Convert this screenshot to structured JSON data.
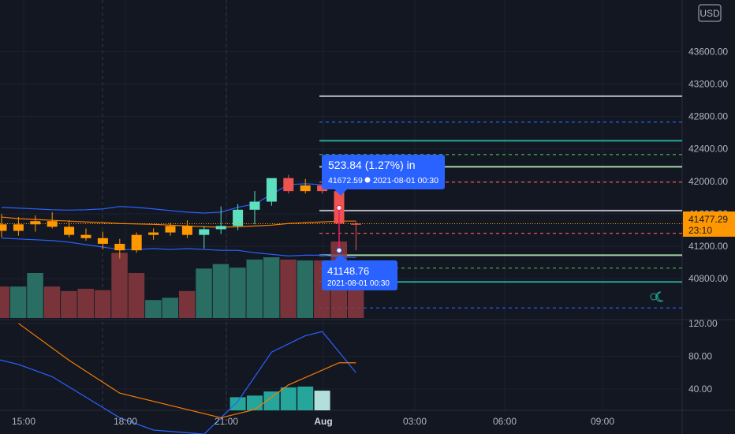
{
  "currency_button": "USD",
  "price_axis": {
    "labels": [
      "43600.00",
      "43200.00",
      "42800.00",
      "42400.00",
      "42000.00",
      "41600.00",
      "41200.00",
      "40800.00"
    ],
    "current_price": "41477.29",
    "countdown": "23:10"
  },
  "oscillator_axis": {
    "labels": [
      "120.00",
      "80.00",
      "40.00"
    ]
  },
  "time_axis": {
    "labels": [
      "15:00",
      "18:00",
      "21:00",
      "Aug",
      "03:00",
      "06:00",
      "09:00"
    ]
  },
  "measure": {
    "change_text": "523.84 (1.27%) in",
    "top_price": "41672.59",
    "top_time": "2021-08-01  00:30",
    "bottom_price": "41148.76",
    "bottom_time": "2021-08-01 00:30"
  },
  "colors": {
    "up": "#26a69a",
    "up_body": "#5ce0c0",
    "down": "#ef5350",
    "orange": "#ff9800",
    "band": "#2962ff",
    "ma": "#f57c00",
    "label_bg": "#2962ff"
  },
  "chart_data": [
    {
      "type": "candlestick",
      "symbol_currency": "USD",
      "x_unit": "time (30-minute bars, Jul 31 – Aug 1 2021)",
      "candles": [
        {
          "time": "14:30",
          "open": 41470,
          "high": 41600,
          "low": 41310,
          "close": 41390
        },
        {
          "time": "15:00",
          "open": 41390,
          "high": 41560,
          "low": 41330,
          "close": 41470
        },
        {
          "time": "15:30",
          "open": 41470,
          "high": 41580,
          "low": 41380,
          "close": 41510
        },
        {
          "time": "16:00",
          "open": 41510,
          "high": 41620,
          "low": 41420,
          "close": 41440
        },
        {
          "time": "16:30",
          "open": 41440,
          "high": 41520,
          "low": 41310,
          "close": 41340
        },
        {
          "time": "17:00",
          "open": 41340,
          "high": 41420,
          "low": 41270,
          "close": 41300
        },
        {
          "time": "17:30",
          "open": 41300,
          "high": 41380,
          "low": 41160,
          "close": 41230
        },
        {
          "time": "18:00",
          "open": 41230,
          "high": 41290,
          "low": 41050,
          "close": 41150
        },
        {
          "time": "18:30",
          "open": 41150,
          "high": 41370,
          "low": 41120,
          "close": 41340
        },
        {
          "time": "19:00",
          "open": 41340,
          "high": 41420,
          "low": 41280,
          "close": 41370
        },
        {
          "time": "19:30",
          "open": 41370,
          "high": 41490,
          "low": 41330,
          "close": 41450
        },
        {
          "time": "20:00",
          "open": 41450,
          "high": 41520,
          "low": 41300,
          "close": 41340
        },
        {
          "time": "20:30",
          "open": 41340,
          "high": 41450,
          "low": 41170,
          "close": 41410
        },
        {
          "time": "21:00",
          "open": 41410,
          "high": 41690,
          "low": 41350,
          "close": 41450
        },
        {
          "time": "21:30",
          "open": 41450,
          "high": 41720,
          "low": 41400,
          "close": 41650
        },
        {
          "time": "22:00",
          "open": 41650,
          "high": 41880,
          "low": 41470,
          "close": 41750
        },
        {
          "time": "22:30",
          "open": 41750,
          "high": 42030,
          "low": 41700,
          "close": 42040
        },
        {
          "time": "23:00",
          "open": 42040,
          "high": 42080,
          "low": 41850,
          "close": 41880
        },
        {
          "time": "23:30",
          "open": 41880,
          "high": 42030,
          "low": 41850,
          "close": 41950
        },
        {
          "time": "00:00",
          "open": 41950,
          "high": 42020,
          "low": 41850,
          "close": 41880
        },
        {
          "time": "00:30",
          "open": 41880,
          "high": 41950,
          "low": 41300,
          "close": 41480
        },
        {
          "time": "01:00",
          "open": 41480,
          "high": 41500,
          "low": 41150,
          "close": 41477.29
        }
      ],
      "volume": [
        {
          "time": "14:30",
          "value": 70,
          "dir": "down"
        },
        {
          "time": "15:00",
          "value": 70,
          "dir": "up"
        },
        {
          "time": "15:30",
          "value": 100,
          "dir": "up"
        },
        {
          "time": "16:00",
          "value": 70,
          "dir": "down"
        },
        {
          "time": "16:30",
          "value": 60,
          "dir": "down"
        },
        {
          "time": "17:00",
          "value": 65,
          "dir": "down"
        },
        {
          "time": "17:30",
          "value": 62,
          "dir": "down"
        },
        {
          "time": "18:00",
          "value": 145,
          "dir": "down"
        },
        {
          "time": "18:30",
          "value": 100,
          "dir": "down"
        },
        {
          "time": "19:00",
          "value": 40,
          "dir": "up"
        },
        {
          "time": "19:30",
          "value": 45,
          "dir": "up"
        },
        {
          "time": "20:00",
          "value": 60,
          "dir": "down"
        },
        {
          "time": "20:30",
          "value": 110,
          "dir": "up"
        },
        {
          "time": "21:00",
          "value": 120,
          "dir": "up"
        },
        {
          "time": "21:30",
          "value": 112,
          "dir": "up"
        },
        {
          "time": "22:00",
          "value": 130,
          "dir": "up"
        },
        {
          "time": "22:30",
          "value": 135,
          "dir": "up"
        },
        {
          "time": "23:00",
          "value": 130,
          "dir": "down"
        },
        {
          "time": "23:30",
          "value": 128,
          "dir": "up"
        },
        {
          "time": "00:00",
          "value": 128,
          "dir": "down"
        },
        {
          "time": "00:30",
          "value": 170,
          "dir": "down"
        },
        {
          "time": "01:00",
          "value": 110,
          "dir": "down"
        }
      ],
      "bollinger_upper": [
        41680,
        41670,
        41660,
        41650,
        41645,
        41650,
        41660,
        41690,
        41680,
        41660,
        41640,
        41620,
        41610,
        41620,
        41680,
        41720,
        41840,
        41960,
        41970,
        41960,
        41980,
        41980
      ],
      "bollinger_lower": [
        41300,
        41290,
        41280,
        41270,
        41250,
        41220,
        41190,
        41160,
        41160,
        41170,
        41160,
        41170,
        41160,
        41150,
        41150,
        41120,
        41100,
        41080,
        41090,
        41090,
        41070,
        41060
      ],
      "moving_average": [
        41560,
        41540,
        41530,
        41520,
        41510,
        41500,
        41490,
        41480,
        41475,
        41470,
        41460,
        41450,
        41440,
        41435,
        41440,
        41450,
        41460,
        41480,
        41490,
        41500,
        41510,
        41510
      ],
      "horizontal_levels": [
        {
          "price": 43050,
          "color": "#b2b5be",
          "style": "solid"
        },
        {
          "price": 42730,
          "color": "#2962ff",
          "style": "dashed"
        },
        {
          "price": 42500,
          "color": "#26a69a",
          "style": "solid"
        },
        {
          "price": 42330,
          "color": "#4caf50",
          "style": "dashed"
        },
        {
          "price": 42180,
          "color": "#a5d6a7",
          "style": "solid"
        },
        {
          "price": 41990,
          "color": "#ef5350",
          "style": "dashed"
        },
        {
          "price": 41640,
          "color": "#b2b5be",
          "style": "solid"
        },
        {
          "price": 41360,
          "color": "#ef5350",
          "style": "dashed"
        },
        {
          "price": 41090,
          "color": "#a5d6a7",
          "style": "solid"
        },
        {
          "price": 40930,
          "color": "#4caf50",
          "style": "dashed"
        },
        {
          "price": 40760,
          "color": "#26a69a",
          "style": "solid"
        },
        {
          "price": 40440,
          "color": "#2962ff",
          "style": "dashed"
        }
      ],
      "y_ticks": [
        43600,
        43200,
        42800,
        42400,
        42000,
        41600,
        41200,
        40800
      ],
      "grid": true
    },
    {
      "type": "line",
      "panel": "oscillator",
      "y_ticks": [
        120,
        80,
        40
      ],
      "series": [
        {
          "color": "#2962ff",
          "points": [
            [
              "14:00",
              80
            ],
            [
              "15:00",
              70
            ],
            [
              "16:00",
              55
            ],
            [
              "17:00",
              30
            ],
            [
              "18:00",
              5
            ],
            [
              "19:00",
              -10
            ],
            [
              "20:30",
              -15
            ],
            [
              "21:30",
              25
            ],
            [
              "22:30",
              85
            ],
            [
              "23:30",
              105
            ],
            [
              "00:00",
              110
            ],
            [
              "01:00",
              60
            ]
          ]
        },
        {
          "color": "#f57c00",
          "points": [
            [
              "15:00",
              120
            ],
            [
              "16:30",
              75
            ],
            [
              "18:00",
              35
            ],
            [
              "19:30",
              20
            ],
            [
              "21:00",
              5
            ],
            [
              "22:00",
              15
            ],
            [
              "23:00",
              45
            ],
            [
              "00:00",
              63
            ],
            [
              "00:30",
              72
            ],
            [
              "01:00",
              72
            ]
          ]
        }
      ],
      "histogram": [
        {
          "time": "21:30",
          "value": 30
        },
        {
          "time": "22:00",
          "value": 32
        },
        {
          "time": "22:30",
          "value": 37
        },
        {
          "time": "23:00",
          "value": 42
        },
        {
          "time": "23:30",
          "value": 43
        },
        {
          "time": "00:00",
          "value": 38
        },
        {
          "time": "00:30",
          "value": 10
        }
      ]
    }
  ]
}
